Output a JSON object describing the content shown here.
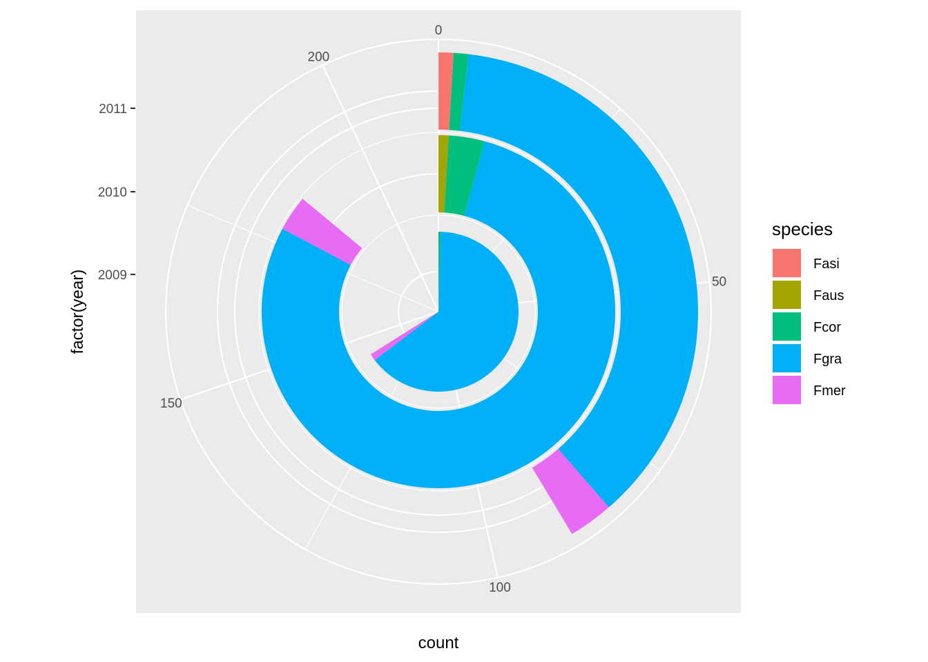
{
  "chart_data": {
    "type": "pie",
    "subtype": "stacked-bar-polar",
    "x": "factor(year)",
    "x_categories": [
      "2009",
      "2010",
      "2011"
    ],
    "xlabel": "factor(year)",
    "ylabel": "count",
    "angle_ticks": [
      "0",
      "50",
      "100",
      "150",
      "200"
    ],
    "angle_tick_values": [
      0,
      50,
      100,
      150,
      200
    ],
    "angle_max": 215,
    "grid": true,
    "legend": {
      "title": "species",
      "position": "right",
      "items": [
        "Fasi",
        "Faus",
        "Fcor",
        "Fgra",
        "Fmer"
      ]
    },
    "colors": {
      "Fasi": "#F8766D",
      "Faus": "#A3A500",
      "Fcor": "#00BF7D",
      "Fgra": "#00B0F6",
      "Fmer": "#E76BF3",
      "panel": "#EBEBEB",
      "grid": "#FFFFFF"
    },
    "series": [
      {
        "name": "Fasi",
        "values": [
          0,
          0,
          2
        ]
      },
      {
        "name": "Faus",
        "values": [
          0,
          2,
          0
        ]
      },
      {
        "name": "Fcor",
        "values": [
          1,
          7,
          2
        ]
      },
      {
        "name": "Fgra",
        "values": [
          138,
          169,
          79
        ]
      },
      {
        "name": "Fmer",
        "values": [
          3,
          7,
          6
        ]
      }
    ]
  }
}
